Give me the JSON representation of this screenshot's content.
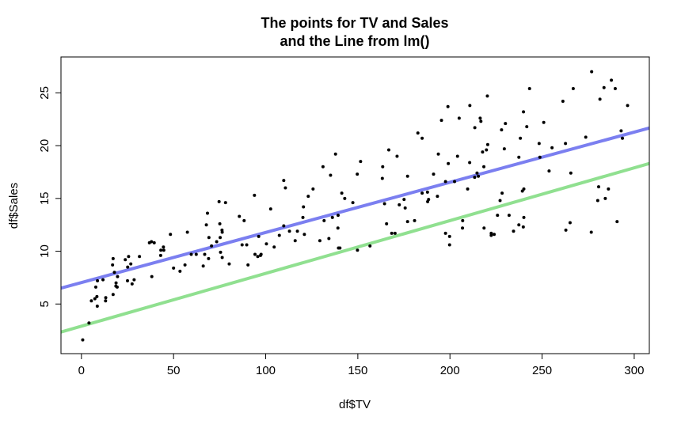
{
  "chart_data": {
    "type": "scatter",
    "title": [
      "The points for TV and Sales",
      "and the Line from lm()"
    ],
    "x_label": "df$TV",
    "y_label": "df$Sales",
    "xlim": [
      -11.1,
      308.2
    ],
    "ylim": [
      0.3,
      28.4
    ],
    "xticks": [
      0,
      50,
      100,
      150,
      200,
      250,
      300
    ],
    "yticks": [
      5,
      10,
      15,
      20,
      25
    ],
    "color": "#000000",
    "x": [
      230.1,
      44.5,
      17.2,
      151.5,
      180.8,
      8.7,
      57.5,
      120.2,
      8.6,
      199.8,
      66.1,
      214.7,
      23.8,
      97.5,
      204.1,
      195.4,
      67.8,
      281.4,
      69.2,
      147.3,
      218.4,
      237.4,
      13.2,
      228.3,
      62.3,
      262.9,
      142.9,
      240.1,
      248.8,
      70.6,
      292.9,
      112.9,
      97.2,
      265.6,
      95.7,
      290.7,
      266.9,
      74.7,
      43.1,
      228,
      202.5,
      177,
      293.6,
      206.9,
      25.1,
      175.1,
      89.7,
      239.9,
      227.2,
      66.9,
      199.8,
      100.4,
      216.4,
      182.6,
      262.7,
      198.9,
      7.3,
      136.2,
      210.8,
      210.7,
      53.5,
      261.3,
      239.3,
      102.7,
      131.1,
      69,
      31.5,
      139.3,
      237.4,
      216.8,
      199.1,
      109.8,
      26.8,
      129.4,
      213.4,
      16.9,
      27.5,
      120.5,
      5.4,
      116,
      76.4,
      239.8,
      75.3,
      68.4,
      213.5,
      193.2,
      76.3,
      110.7,
      88.3,
      109.8,
      134.3,
      28.6,
      217.7,
      250.9,
      107.4,
      163.3,
      197.6,
      184.9,
      289.7,
      135.2,
      222.4,
      296.4,
      280.2,
      187.9,
      238.2,
      137.9,
      25,
      90.4,
      13.1,
      255.4,
      225.8,
      241.7,
      175.7,
      209.6,
      78.2,
      75.1,
      139.2,
      76.4,
      125.7,
      19.4,
      141.3,
      18.8,
      224,
      123.1,
      229.5,
      87.2,
      7.8,
      80.2,
      220.3,
      59.6,
      0.7,
      265.2,
      8.4,
      219.8,
      36.9,
      48.3,
      25.6,
      273.7,
      43,
      184.9,
      73.4,
      193.7,
      220.5,
      104.6,
      96.2,
      140.3,
      240.1,
      243.2,
      38,
      44.7,
      280.7,
      121,
      197.6,
      171.3,
      187.8,
      4.1,
      93.9,
      149.8,
      11.7,
      131.7,
      172.5,
      85.7,
      188.4,
      163.5,
      117.2,
      234.5,
      17.9,
      206.8,
      215.4,
      284.3,
      50,
      164.5,
      19.6,
      168.4,
      222.4,
      276.9,
      248.4,
      170.2,
      276.7,
      165.6,
      156.6,
      218.5,
      56.2,
      287.6,
      253.8,
      205,
      139.5,
      191.1,
      286,
      18.7,
      39.5,
      75.5,
      17.2,
      166.8,
      149.7,
      38.2,
      94.2,
      177,
      283.6,
      232.1
    ],
    "values": [
      22.1,
      10.4,
      9.3,
      18.5,
      12.9,
      7.2,
      11.8,
      13.2,
      4.8,
      10.6,
      8.6,
      17.4,
      9.2,
      9.7,
      19,
      22.4,
      12.5,
      24.4,
      11.3,
      14.6,
      18,
      12.5,
      5.6,
      15.5,
      9.7,
      12,
      15,
      15.9,
      18.9,
      10.5,
      21.4,
      11.9,
      9.6,
      17.4,
      9.5,
      12.8,
      25.4,
      14.7,
      10.1,
      21.5,
      16.6,
      17.1,
      20.7,
      12.9,
      8.5,
      14.9,
      10.6,
      23.2,
      14.8,
      9.7,
      11.4,
      10.7,
      22.6,
      21.2,
      20.2,
      23.7,
      5.5,
      13.2,
      23.8,
      18.4,
      8.1,
      24.2,
      15.7,
      14,
      18,
      9.3,
      9.5,
      13.4,
      18.9,
      22.3,
      18.3,
      12.4,
      8.8,
      11,
      17,
      8.7,
      6.9,
      14.2,
      5.3,
      11,
      11.8,
      12.3,
      11.3,
      13.6,
      21.7,
      15.2,
      12,
      16,
      12.9,
      16.7,
      11.2,
      7.3,
      19.4,
      22.2,
      11.5,
      16.9,
      11.7,
      15.5,
      25.4,
      17.2,
      11.7,
      23.8,
      14.8,
      14.7,
      20.7,
      19.2,
      7.2,
      8.7,
      5.3,
      19.8,
      13.4,
      21.8,
      14.1,
      15.9,
      14.6,
      12.6,
      12.2,
      9.4,
      15.9,
      6.6,
      15.5,
      7,
      11.6,
      15.2,
      19.7,
      10.6,
      6.6,
      8.8,
      24.7,
      9.7,
      1.6,
      12.7,
      5.7,
      19.6,
      10.8,
      11.6,
      9.5,
      20.8,
      9.6,
      20.7,
      10.9,
      19.2,
      20.1,
      10.4,
      11.4,
      10.3,
      13.2,
      25.4,
      10.9,
      10.1,
      16.1,
      11.6,
      16.6,
      19,
      15.6,
      3.2,
      15.3,
      10.1,
      7.3,
      12.9,
      14.4,
      13.3,
      14.9,
      18,
      11.9,
      11.9,
      8,
      12.2,
      17.1,
      15,
      8.4,
      14.5,
      7.6,
      11.7,
      11.5,
      27,
      20.2,
      11.7,
      11.8,
      12.6,
      10.5,
      12.2,
      8.7,
      26.2,
      17.6,
      22.6,
      10.3,
      17.3,
      15.9,
      6.7,
      10.8,
      9.9,
      5.9,
      19.6,
      17.3,
      7.6,
      9.7,
      12.8,
      25.5,
      13.4
    ],
    "lines": [
      {
        "color": "#7b7ff0",
        "intercept": 7.03,
        "slope": 0.0475
      },
      {
        "color": "#90e090",
        "intercept": 2.9,
        "slope": 0.05
      }
    ]
  }
}
